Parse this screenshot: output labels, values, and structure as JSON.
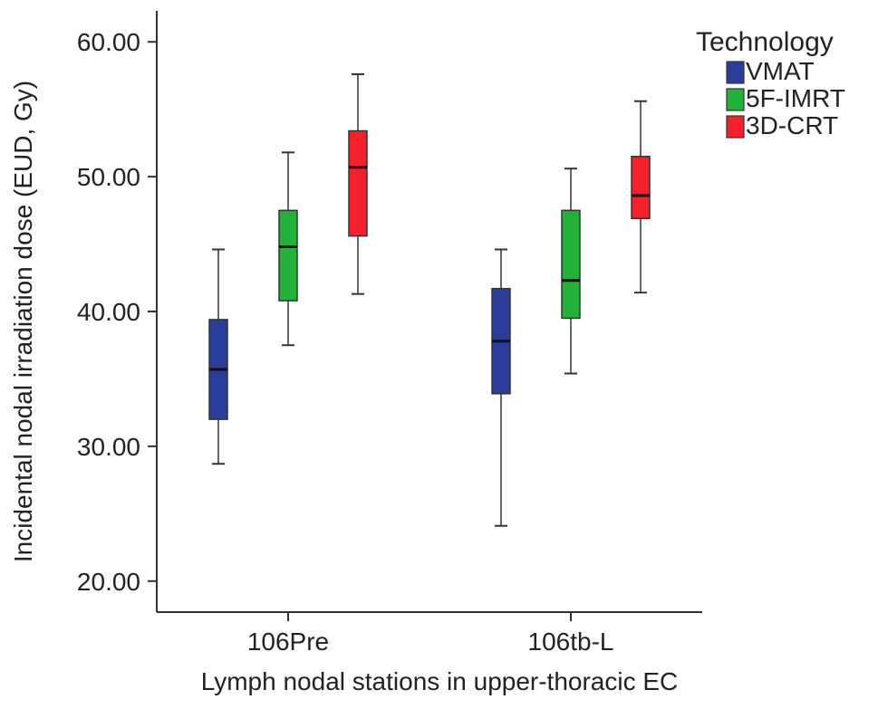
{
  "chart_data": {
    "type": "boxplot",
    "title": "",
    "xlabel": "Lymph nodal stations in upper-thoracic EC",
    "ylabel": "Incidental nodal irradiation dose (EUD, Gy)",
    "ylim": [
      17.7,
      62.3
    ],
    "yticks": [
      20,
      30,
      40,
      50,
      60
    ],
    "ytick_labels": [
      "20.00",
      "30.00",
      "40.00",
      "50.00",
      "60.00"
    ],
    "categories": [
      "106Pre",
      "106tb-L"
    ],
    "grid": false,
    "legend": {
      "title": "Technology",
      "position": "top-right"
    },
    "series": [
      {
        "name": "VMAT",
        "color": "#2b3d9b",
        "boxes": [
          {
            "min": 28.7,
            "q1": 32.0,
            "median": 35.7,
            "q3": 39.4,
            "max": 44.6
          },
          {
            "min": 24.1,
            "q1": 33.9,
            "median": 37.8,
            "q3": 41.7,
            "max": 44.6
          }
        ]
      },
      {
        "name": "5F-IMRT",
        "color": "#22b23a",
        "boxes": [
          {
            "min": 37.5,
            "q1": 40.8,
            "median": 44.8,
            "q3": 47.5,
            "max": 51.8
          },
          {
            "min": 35.4,
            "q1": 39.5,
            "median": 42.3,
            "q3": 47.5,
            "max": 50.6
          }
        ]
      },
      {
        "name": "3D-CRT",
        "color": "#f4202a",
        "boxes": [
          {
            "min": 41.3,
            "q1": 45.6,
            "median": 50.7,
            "q3": 53.4,
            "max": 57.6
          },
          {
            "min": 41.4,
            "q1": 46.9,
            "median": 48.6,
            "q3": 51.5,
            "max": 55.6
          }
        ]
      }
    ]
  }
}
